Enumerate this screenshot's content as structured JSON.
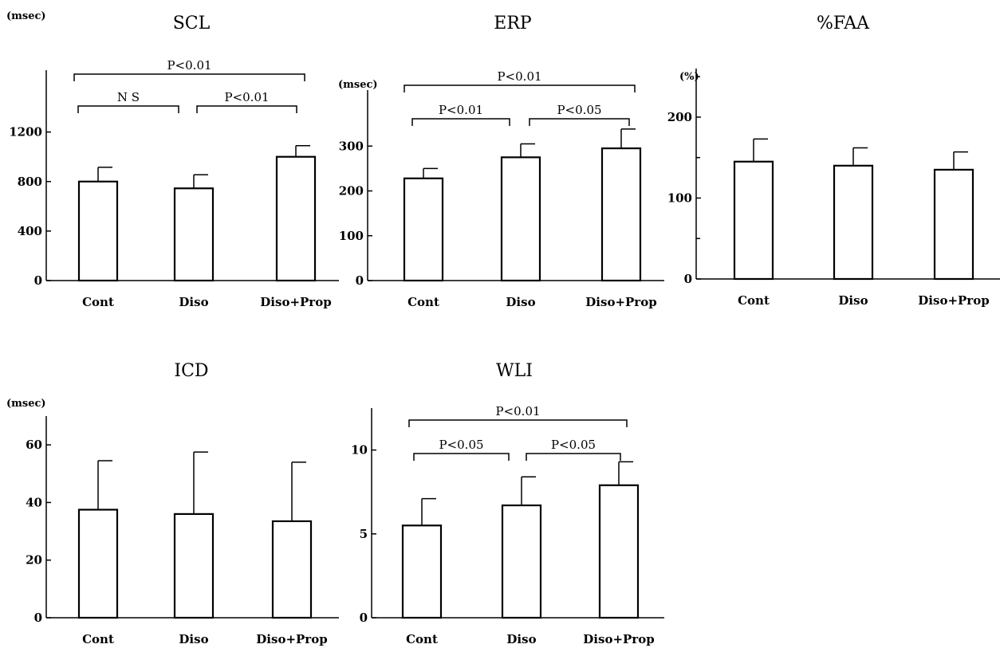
{
  "chart_data": [
    {
      "id": "scl",
      "type": "bar",
      "title": "SCL",
      "unit": "(msec)",
      "categories": [
        "Cont",
        "Diso",
        "Diso+Prop"
      ],
      "values": [
        800,
        745,
        1000
      ],
      "errors": [
        115,
        110,
        90
      ],
      "ylim": [
        0,
        1700
      ],
      "yticks": [
        0,
        400,
        800,
        1200
      ],
      "ytick_labels": [
        "0",
        "400",
        "800",
        "1200"
      ],
      "minor_ticks": [],
      "comparisons": [
        {
          "from": 0,
          "to": 2,
          "label": "P<0.01",
          "level": 1
        },
        {
          "from": 0,
          "to": 1,
          "label": "N S",
          "level": 0
        },
        {
          "from": 1,
          "to": 2,
          "label": "P<0.01",
          "level": 0
        }
      ]
    },
    {
      "id": "erp",
      "type": "bar",
      "title": "ERP",
      "unit": "(msec)",
      "categories": [
        "Cont",
        "Diso",
        "Diso+Prop"
      ],
      "values": [
        228,
        275,
        295
      ],
      "errors": [
        22,
        30,
        43
      ],
      "ylim": [
        0,
        425
      ],
      "yticks": [
        0,
        100,
        200,
        300
      ],
      "ytick_labels": [
        "0",
        "100",
        "200",
        "300"
      ],
      "minor_ticks": [],
      "comparisons": [
        {
          "from": 0,
          "to": 2,
          "label": "P<0.01",
          "level": 1
        },
        {
          "from": 0,
          "to": 1,
          "label": "P<0.01",
          "level": 0
        },
        {
          "from": 1,
          "to": 2,
          "label": "P<0.05",
          "level": 0
        }
      ]
    },
    {
      "id": "faa",
      "type": "bar",
      "title": "%FAA",
      "unit": "(%)",
      "categories": [
        "Cont",
        "Diso",
        "Diso+Prop"
      ],
      "values": [
        145,
        140,
        135
      ],
      "errors": [
        28,
        22,
        22
      ],
      "ylim": [
        0,
        260
      ],
      "yticks": [
        0,
        100,
        200
      ],
      "ytick_labels": [
        "0",
        "100",
        "200"
      ],
      "minor_ticks": [
        50,
        150,
        250
      ],
      "comparisons": []
    },
    {
      "id": "icd",
      "type": "bar",
      "title": "ICD",
      "unit": "(msec)",
      "categories": [
        "Cont",
        "Diso",
        "Diso+Prop"
      ],
      "values": [
        37.5,
        36,
        33.5
      ],
      "errors": [
        17,
        21.5,
        20.5
      ],
      "ylim": [
        0,
        70
      ],
      "yticks": [
        0,
        20,
        40,
        60
      ],
      "ytick_labels": [
        "0",
        "20",
        "40",
        "60"
      ],
      "minor_ticks": [],
      "comparisons": []
    },
    {
      "id": "wli",
      "type": "bar",
      "title": "WLI",
      "unit": "",
      "categories": [
        "Cont",
        "Diso",
        "Diso+Prop"
      ],
      "values": [
        5.5,
        6.7,
        7.9
      ],
      "errors": [
        1.6,
        1.7,
        1.4
      ],
      "ylim": [
        0,
        12.5
      ],
      "yticks": [
        0,
        5,
        10
      ],
      "ytick_labels": [
        "0",
        "5",
        "10"
      ],
      "minor_ticks": [],
      "comparisons": [
        {
          "from": 0,
          "to": 2,
          "label": "P<0.01",
          "level": 1
        },
        {
          "from": 0,
          "to": 1,
          "label": "P<0.05",
          "level": 0
        },
        {
          "from": 1,
          "to": 2,
          "label": "P<0.05",
          "level": 0
        }
      ]
    }
  ]
}
